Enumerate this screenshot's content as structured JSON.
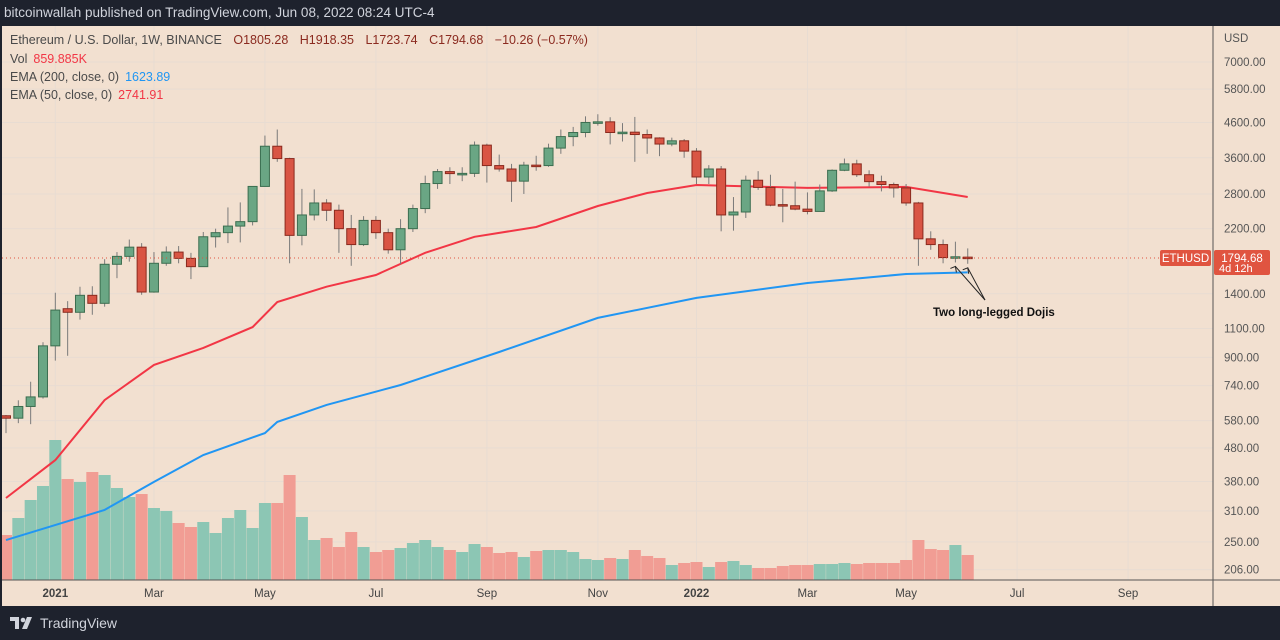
{
  "header": {
    "published": "bitcoinwallah published on TradingView.com, Jun 08, 2022 08:24 UTC-4"
  },
  "legend": {
    "symbol": "Ethereum / U.S. Dollar, 1W, BINANCE",
    "open": "O1805.28",
    "high": "H1918.35",
    "low": "L1723.74",
    "close": "C1794.68",
    "change": "−10.26 (−0.57%)",
    "vol_label": "Vol",
    "vol_value": "859.885K",
    "ema200_label": "EMA (200, close, 0)",
    "ema200_value": "1623.89",
    "ema50_label": "EMA (50, close, 0)",
    "ema50_value": "2741.91"
  },
  "footer": {
    "brand": "TradingView",
    "logo_icon": "tradingview-logo-icon"
  },
  "colors": {
    "up": "#6aa684",
    "down": "#d95544",
    "vol_up": "#8cc6b4",
    "vol_down": "#f19d94",
    "ema200": "#2196f3",
    "ema50": "#f23645",
    "last_price": "#e05440",
    "background": "#f2e0d0"
  },
  "chart_data": {
    "type": "candlestick",
    "interval": "1W",
    "y_scale": "log",
    "y_unit": "USD",
    "ylim": [
      206,
      7000
    ],
    "y_ticks": [
      "7000.00",
      "5800.00",
      "4600.00",
      "3600.00",
      "2800.00",
      "2200.00",
      "1400.00",
      "1100.00",
      "900.00",
      "740.00",
      "580.00",
      "480.00",
      "380.00",
      "310.00",
      "250.00",
      "206.00"
    ],
    "x_ticks": [
      {
        "label": "2021",
        "bold": true,
        "week": 4
      },
      {
        "label": "Mar",
        "week": 12
      },
      {
        "label": "May",
        "week": 21
      },
      {
        "label": "Jul",
        "week": 30
      },
      {
        "label": "Sep",
        "week": 39
      },
      {
        "label": "Nov",
        "week": 48
      },
      {
        "label": "2022",
        "bold": true,
        "week": 56
      },
      {
        "label": "Mar",
        "week": 65
      },
      {
        "label": "May",
        "week": 73
      },
      {
        "label": "Jul",
        "week": 82
      },
      {
        "label": "Sep",
        "week": 91
      }
    ],
    "first_week": "2020-12-07",
    "grid": true,
    "ohlc": [
      [
        600,
        603,
        532,
        590
      ],
      [
        590,
        668,
        570,
        640
      ],
      [
        640,
        760,
        566,
        684
      ],
      [
        684,
        1000,
        676,
        975
      ],
      [
        975,
        1410,
        880,
        1250
      ],
      [
        1262,
        1330,
        910,
        1231
      ],
      [
        1231,
        1470,
        1170,
        1385
      ],
      [
        1385,
        1475,
        1210,
        1310
      ],
      [
        1310,
        1780,
        1280,
        1718
      ],
      [
        1718,
        1870,
        1560,
        1815
      ],
      [
        1815,
        2040,
        1750,
        1935
      ],
      [
        1935,
        1990,
        1390,
        1417
      ],
      [
        1417,
        1870,
        1410,
        1730
      ],
      [
        1730,
        1945,
        1700,
        1870
      ],
      [
        1870,
        1950,
        1730,
        1790
      ],
      [
        1790,
        1860,
        1550,
        1690
      ],
      [
        1690,
        2150,
        1690,
        2080
      ],
      [
        2080,
        2200,
        1930,
        2140
      ],
      [
        2140,
        2550,
        1990,
        2240
      ],
      [
        2240,
        2640,
        2000,
        2310
      ],
      [
        2310,
        2950,
        2250,
        2950
      ],
      [
        2950,
        4200,
        2950,
        3900
      ],
      [
        3900,
        4380,
        3500,
        3580
      ],
      [
        3580,
        3600,
        1730,
        2100
      ],
      [
        2100,
        2900,
        1960,
        2420
      ],
      [
        2420,
        2890,
        2330,
        2630
      ],
      [
        2630,
        2700,
        2320,
        2500
      ],
      [
        2500,
        2600,
        1860,
        2200
      ],
      [
        2200,
        2420,
        1700,
        1970
      ],
      [
        1970,
        2400,
        1950,
        2330
      ],
      [
        2330,
        2400,
        2050,
        2140
      ],
      [
        2140,
        2200,
        1850,
        1900
      ],
      [
        1900,
        2350,
        1720,
        2200
      ],
      [
        2200,
        2600,
        2150,
        2530
      ],
      [
        2530,
        3180,
        2450,
        3010
      ],
      [
        3010,
        3330,
        2900,
        3270
      ],
      [
        3270,
        3370,
        3000,
        3225
      ],
      [
        3225,
        3370,
        3060,
        3230
      ],
      [
        3230,
        4030,
        3150,
        3930
      ],
      [
        3930,
        3970,
        3030,
        3410
      ],
      [
        3410,
        3680,
        3270,
        3330
      ],
      [
        3330,
        3450,
        2650,
        3060
      ],
      [
        3060,
        3500,
        2800,
        3420
      ],
      [
        3420,
        3650,
        3290,
        3410
      ],
      [
        3410,
        3970,
        3380,
        3850
      ],
      [
        3850,
        4380,
        3700,
        4170
      ],
      [
        4170,
        4460,
        3900,
        4290
      ],
      [
        4290,
        4800,
        4150,
        4600
      ],
      [
        4600,
        4870,
        4500,
        4620
      ],
      [
        4620,
        4770,
        3950,
        4290
      ],
      [
        4290,
        4580,
        4030,
        4300
      ],
      [
        4300,
        4780,
        3500,
        4230
      ],
      [
        4230,
        4380,
        3700,
        4130
      ],
      [
        4130,
        4150,
        3640,
        3960
      ],
      [
        3960,
        4140,
        3900,
        4050
      ],
      [
        4050,
        4100,
        3600,
        3770
      ],
      [
        3770,
        3850,
        3000,
        3150
      ],
      [
        3150,
        3420,
        3000,
        3330
      ],
      [
        3330,
        3400,
        2160,
        2420
      ],
      [
        2420,
        2740,
        2170,
        2470
      ],
      [
        2470,
        3180,
        2370,
        3080
      ],
      [
        3080,
        3280,
        2880,
        2930
      ],
      [
        2930,
        3200,
        2570,
        2590
      ],
      [
        2600,
        2900,
        2300,
        2580
      ],
      [
        2580,
        3050,
        2500,
        2520
      ],
      [
        2520,
        2830,
        2430,
        2480
      ],
      [
        2480,
        2990,
        2480,
        2860
      ],
      [
        2860,
        3320,
        2840,
        3300
      ],
      [
        3300,
        3580,
        3280,
        3450
      ],
      [
        3450,
        3550,
        3150,
        3200
      ],
      [
        3200,
        3300,
        2950,
        3050
      ],
      [
        3050,
        3180,
        2850,
        2990
      ],
      [
        2990,
        3030,
        2730,
        2920
      ],
      [
        2920,
        3000,
        2580,
        2630
      ],
      [
        2630,
        2650,
        1700,
        2050
      ],
      [
        2050,
        2160,
        1900,
        1970
      ],
      [
        1970,
        2040,
        1730,
        1800
      ],
      [
        1800,
        2010,
        1740,
        1810
      ],
      [
        1805.28,
        1918.35,
        1723.74,
        1794.68
      ]
    ],
    "volume_unit": "K",
    "volume": [
      1548,
      2133,
      2752,
      3234,
      4816,
      3474,
      3371,
      3715,
      3612,
      3165,
      2855,
      2958,
      2477,
      2374,
      1961,
      1823,
      1995,
      1617,
      2133,
      2408,
      1789,
      2649,
      2649,
      3612,
      2167,
      1376,
      1445,
      1135,
      1651,
      1135,
      963,
      1032,
      1101,
      1273,
      1376,
      1135,
      1032,
      963,
      1238,
      1135,
      929,
      963,
      791,
      998,
      1032,
      1032,
      963,
      722,
      688,
      757,
      722,
      1032,
      826,
      757,
      516,
      585,
      619,
      447,
      619,
      654,
      516,
      413,
      413,
      482,
      516,
      516,
      550,
      550,
      585,
      550,
      585,
      585,
      585,
      688,
      1376,
      1066,
      1032,
      1204,
      859.885
    ],
    "ema50": [
      [
        0,
        339
      ],
      [
        4,
        441
      ],
      [
        8,
        669
      ],
      [
        12,
        854
      ],
      [
        16,
        961
      ],
      [
        20,
        1111
      ],
      [
        22,
        1322
      ],
      [
        26,
        1470
      ],
      [
        30,
        1595
      ],
      [
        34,
        1860
      ],
      [
        38,
        2079
      ],
      [
        43,
        2225
      ],
      [
        48,
        2575
      ],
      [
        52,
        2818
      ],
      [
        56,
        2980
      ],
      [
        65,
        2920
      ],
      [
        73,
        2940
      ],
      [
        78,
        2741.91
      ]
    ],
    "ema200": [
      [
        0,
        253
      ],
      [
        8,
        312
      ],
      [
        12,
        379
      ],
      [
        16,
        457
      ],
      [
        21,
        532
      ],
      [
        22,
        575
      ],
      [
        26,
        647
      ],
      [
        32,
        743
      ],
      [
        40,
        934
      ],
      [
        48,
        1184
      ],
      [
        56,
        1360
      ],
      [
        65,
        1509
      ],
      [
        73,
        1606
      ],
      [
        78,
        1623.89
      ]
    ],
    "last_price": {
      "symbol": "ETHUSD",
      "value": "1794.68",
      "countdown": "4d 12h",
      "price": 1794.68
    },
    "annotation": {
      "text": "Two long-legged Dojis",
      "targets": [
        77,
        78
      ]
    }
  }
}
